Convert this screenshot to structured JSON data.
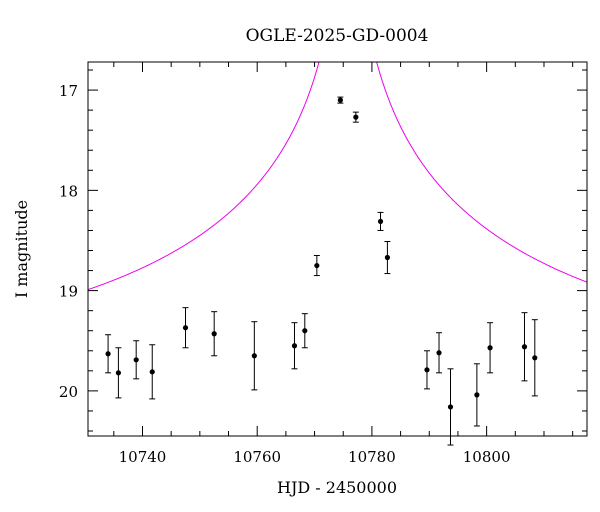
{
  "chart_data": {
    "type": "scatter",
    "title": "OGLE-2025-GD-0004",
    "xlabel": "HJD - 2450000",
    "ylabel": "I magnitude",
    "xlim": [
      10730.5,
      10817.5
    ],
    "ylim": [
      20.45,
      16.72
    ],
    "y_inverted": true,
    "xticks": [
      10740,
      10760,
      10780,
      10800
    ],
    "yticks": [
      17,
      18,
      19,
      20
    ],
    "grid": false,
    "points": [
      {
        "x": 10734.0,
        "y": 19.63,
        "err": 0.19
      },
      {
        "x": 10735.8,
        "y": 19.82,
        "err": 0.25
      },
      {
        "x": 10738.9,
        "y": 19.69,
        "err": 0.19
      },
      {
        "x": 10741.7,
        "y": 19.81,
        "err": 0.27
      },
      {
        "x": 10747.5,
        "y": 19.37,
        "err": 0.2
      },
      {
        "x": 10752.5,
        "y": 19.43,
        "err": 0.22
      },
      {
        "x": 10759.5,
        "y": 19.65,
        "err": 0.34
      },
      {
        "x": 10766.5,
        "y": 19.55,
        "err": 0.23
      },
      {
        "x": 10768.3,
        "y": 19.4,
        "err": 0.17
      },
      {
        "x": 10770.4,
        "y": 18.75,
        "err": 0.1
      },
      {
        "x": 10774.5,
        "y": 17.1,
        "err": 0.03
      },
      {
        "x": 10777.2,
        "y": 17.27,
        "err": 0.05
      },
      {
        "x": 10781.5,
        "y": 18.31,
        "err": 0.09
      },
      {
        "x": 10782.7,
        "y": 18.67,
        "err": 0.16
      },
      {
        "x": 10789.6,
        "y": 19.79,
        "err": 0.19
      },
      {
        "x": 10791.7,
        "y": 19.62,
        "err": 0.2
      },
      {
        "x": 10793.7,
        "y": 20.16,
        "err": 0.38
      },
      {
        "x": 10798.3,
        "y": 20.04,
        "err": 0.31
      },
      {
        "x": 10800.6,
        "y": 19.57,
        "err": 0.25
      },
      {
        "x": 10806.6,
        "y": 19.56,
        "err": 0.34
      },
      {
        "x": 10808.4,
        "y": 19.67,
        "err": 0.38
      }
    ],
    "model": {
      "type": "point-lens",
      "t0": 10775.8,
      "u0": 0.009,
      "tE": 85,
      "baseline_mag": 19.78
    },
    "colors": {
      "model": "#ee00ee",
      "points": "#000000",
      "axes": "#000000"
    }
  }
}
